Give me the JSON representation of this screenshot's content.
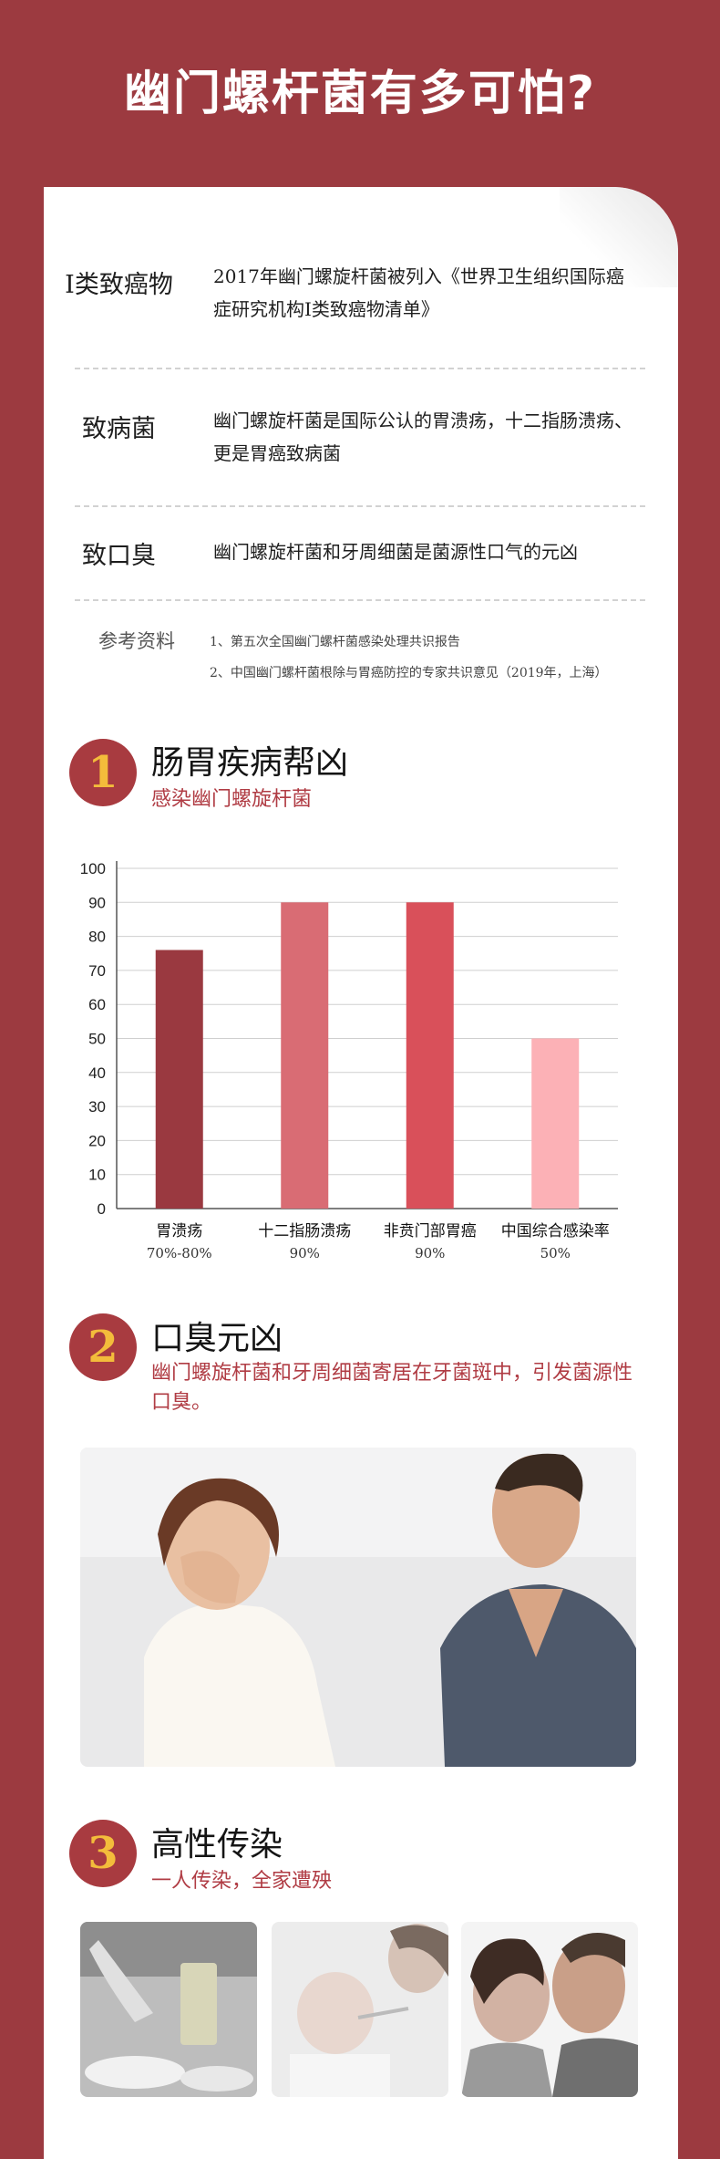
{
  "header": {
    "title": "幽门螺杆菌有多可怕?"
  },
  "facts": [
    {
      "label": "I类致癌物",
      "text": "2017年幽门螺旋杆菌被列入《世界卫生组织国际癌症研究机构I类致癌物清单》"
    },
    {
      "label": "致病菌",
      "text": "幽门螺旋杆菌是国际公认的胃溃疡，十二指肠溃疡、更是胃癌致病菌"
    },
    {
      "label": "致口臭",
      "text": "幽门螺旋杆菌和牙周细菌是菌源性口气的元凶"
    }
  ],
  "references": {
    "label": "参考资料",
    "items": [
      "1、第五次全国幽门螺杆菌感染处理共识报告",
      "2、中国幽门螺杆菌根除与胃癌防控的专家共识意见（2019年，上海）"
    ]
  },
  "sections": [
    {
      "number": "1",
      "title": "肠胃疾病帮凶",
      "subtitle": "感染幽门螺旋杆菌"
    },
    {
      "number": "2",
      "title": "口臭元凶",
      "subtitle": "幽门螺旋杆菌和牙周细菌寄居在牙菌斑中，引发菌源性口臭。"
    },
    {
      "number": "3",
      "title": "高性传染",
      "subtitle": "一人传染，全家遭殃"
    }
  ],
  "chart_data": {
    "type": "bar",
    "categories": [
      "胃溃疡",
      "十二指肠溃疡",
      "非贲门部胃癌",
      "中国综合感染率"
    ],
    "category_notes": [
      "70%-80%",
      "90%",
      "90%",
      "50%"
    ],
    "values": [
      76,
      90,
      90,
      50
    ],
    "colors": [
      "#9a3940",
      "#d96c74",
      "#d9505a",
      "#fcb1b6"
    ],
    "yticks": [
      0,
      10,
      20,
      30,
      40,
      50,
      60,
      70,
      80,
      90,
      100
    ],
    "ylim": [
      0,
      100
    ],
    "grid": true
  }
}
